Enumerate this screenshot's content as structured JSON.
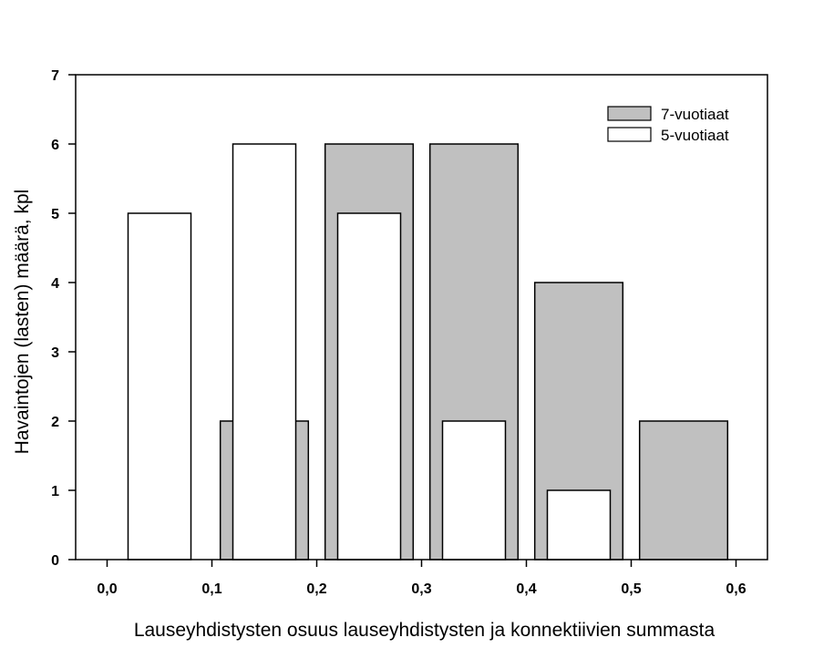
{
  "chart_data": {
    "type": "bar",
    "xlabel": "Lauseyhdistysten osuus lauseyhdistysten ja konnektiivien summasta",
    "ylabel": "Havaintojen (lasten) määrä, kpl",
    "xlim": [
      -0.03,
      0.63
    ],
    "ylim": [
      0,
      7
    ],
    "x_ticks": [
      "0,0",
      "0,1",
      "0,2",
      "0,3",
      "0,4",
      "0,5",
      "0,6"
    ],
    "x_tick_values": [
      0,
      0.1,
      0.2,
      0.3,
      0.4,
      0.5,
      0.6
    ],
    "y_ticks": [
      "0",
      "1",
      "2",
      "3",
      "4",
      "5",
      "6",
      "7"
    ],
    "y_tick_values": [
      0,
      1,
      2,
      3,
      4,
      5,
      6,
      7
    ],
    "grid": false,
    "legend_position": "top-right",
    "series": [
      {
        "name": "7-vuotiaat",
        "color": "#c0c0c0",
        "bins": [
          {
            "x0": 0.108,
            "x1": 0.192,
            "value": 2
          },
          {
            "x0": 0.208,
            "x1": 0.292,
            "value": 6
          },
          {
            "x0": 0.308,
            "x1": 0.392,
            "value": 6
          },
          {
            "x0": 0.408,
            "x1": 0.492,
            "value": 4
          },
          {
            "x0": 0.508,
            "x1": 0.592,
            "value": 2
          }
        ]
      },
      {
        "name": "5-vuotiaat",
        "color": "#ffffff",
        "bins": [
          {
            "x0": 0.02,
            "x1": 0.08,
            "value": 5
          },
          {
            "x0": 0.12,
            "x1": 0.18,
            "value": 6
          },
          {
            "x0": 0.22,
            "x1": 0.28,
            "value": 5
          },
          {
            "x0": 0.32,
            "x1": 0.38,
            "value": 2
          },
          {
            "x0": 0.42,
            "x1": 0.48,
            "value": 1
          }
        ]
      }
    ]
  }
}
